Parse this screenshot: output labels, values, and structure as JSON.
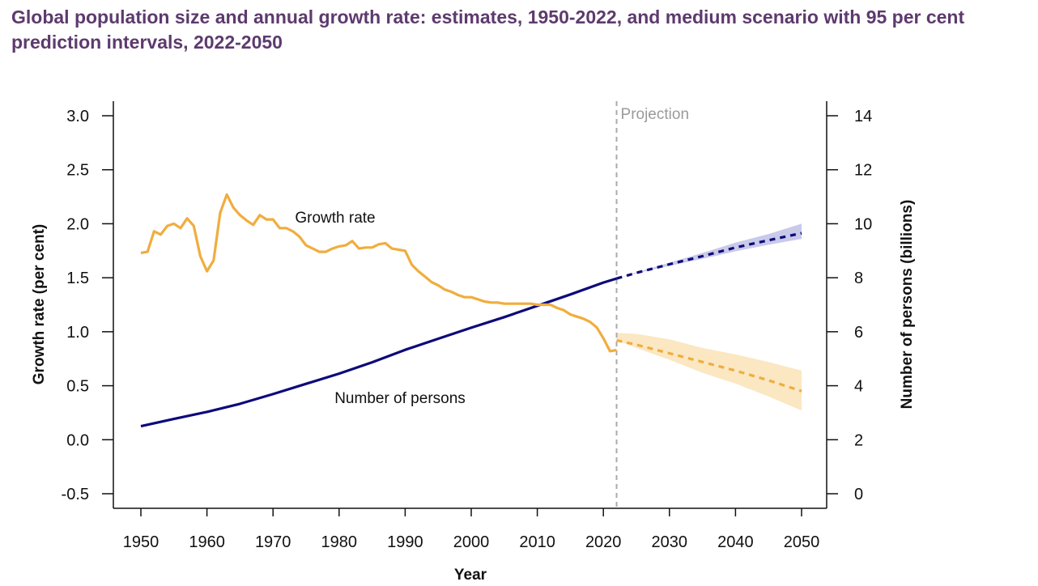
{
  "title": "Global population size and annual growth rate: estimates, 1950-2022, and medium scenario with 95 per cent prediction intervals, 2022-2050",
  "chart_data": {
    "type": "line",
    "title": "Global population size and annual growth rate: estimates, 1950-2022, and medium scenario with 95 per cent prediction intervals, 2022-2050",
    "xlabel": "Year",
    "ylabel_left": "Growth rate (per cent)",
    "ylabel_right": "Number of persons (billions)",
    "xlim": [
      1950,
      2050
    ],
    "ylim_left": [
      -0.5,
      3.0
    ],
    "ylim_right": [
      0,
      14
    ],
    "x_ticks": [
      1950,
      1960,
      1970,
      1980,
      1990,
      2000,
      2010,
      2020,
      2030,
      2040,
      2050
    ],
    "y_left_ticks": [
      -0.5,
      0.0,
      0.5,
      1.0,
      1.5,
      2.0,
      2.5,
      3.0
    ],
    "y_left_tick_labels": [
      "-0.5",
      "0.0",
      "0.5",
      "1.0",
      "1.5",
      "2.0",
      "2.5",
      "3.0"
    ],
    "y_right_ticks": [
      0,
      2,
      4,
      6,
      8,
      10,
      12,
      14
    ],
    "projection_start": 2022,
    "projection_label": "Projection",
    "annotations": {
      "growth": "Growth rate",
      "persons": "Number of persons"
    },
    "colors": {
      "growth": "#f0ad3e",
      "growth_band": "#fbe7c2",
      "persons": "#0d0a7a",
      "persons_band": "#c9c9ea",
      "projection_line": "#aaaaaa",
      "title": "#5d3a6e"
    },
    "series": [
      {
        "name": "Growth rate",
        "axis": "left",
        "x": [
          1950,
          1951,
          1952,
          1953,
          1954,
          1955,
          1956,
          1957,
          1958,
          1959,
          1960,
          1961,
          1962,
          1963,
          1964,
          1965,
          1966,
          1967,
          1968,
          1969,
          1970,
          1971,
          1972,
          1973,
          1974,
          1975,
          1976,
          1977,
          1978,
          1979,
          1980,
          1981,
          1982,
          1983,
          1984,
          1985,
          1986,
          1987,
          1988,
          1989,
          1990,
          1991,
          1992,
          1993,
          1994,
          1995,
          1996,
          1997,
          1998,
          1999,
          2000,
          2001,
          2002,
          2003,
          2004,
          2005,
          2006,
          2007,
          2008,
          2009,
          2010,
          2011,
          2012,
          2013,
          2014,
          2015,
          2016,
          2017,
          2018,
          2019,
          2020,
          2021,
          2022
        ],
        "values": [
          1.73,
          1.74,
          1.93,
          1.9,
          1.98,
          2.0,
          1.96,
          2.05,
          1.98,
          1.7,
          1.56,
          1.66,
          2.1,
          2.27,
          2.15,
          2.08,
          2.03,
          1.99,
          2.08,
          2.04,
          2.04,
          1.96,
          1.96,
          1.93,
          1.88,
          1.8,
          1.77,
          1.74,
          1.74,
          1.77,
          1.79,
          1.8,
          1.84,
          1.77,
          1.78,
          1.78,
          1.81,
          1.82,
          1.77,
          1.76,
          1.75,
          1.62,
          1.56,
          1.51,
          1.46,
          1.43,
          1.39,
          1.37,
          1.34,
          1.32,
          1.32,
          1.3,
          1.28,
          1.27,
          1.27,
          1.26,
          1.26,
          1.26,
          1.26,
          1.26,
          1.25,
          1.25,
          1.25,
          1.22,
          1.2,
          1.16,
          1.14,
          1.12,
          1.09,
          1.04,
          0.94,
          0.82,
          0.83
        ]
      },
      {
        "name": "Growth rate (projection, medium)",
        "axis": "left",
        "x": [
          2022,
          2025,
          2030,
          2035,
          2040,
          2045,
          2050
        ],
        "values": [
          0.92,
          0.88,
          0.8,
          0.72,
          0.64,
          0.55,
          0.45
        ],
        "lower": [
          0.92,
          0.85,
          0.74,
          0.62,
          0.52,
          0.4,
          0.27
        ],
        "upper": [
          0.99,
          0.98,
          0.93,
          0.85,
          0.79,
          0.72,
          0.64
        ]
      },
      {
        "name": "Number of persons (billions)",
        "axis": "right",
        "x": [
          1950,
          1955,
          1960,
          1965,
          1970,
          1975,
          1980,
          1985,
          1990,
          1995,
          2000,
          2005,
          2010,
          2015,
          2020,
          2022
        ],
        "values": [
          2.5,
          2.77,
          3.03,
          3.33,
          3.69,
          4.07,
          4.45,
          4.87,
          5.33,
          5.74,
          6.15,
          6.54,
          6.96,
          7.38,
          7.82,
          7.97
        ]
      },
      {
        "name": "Number of persons (projection, medium)",
        "axis": "right",
        "x": [
          2022,
          2025,
          2030,
          2035,
          2040,
          2045,
          2050
        ],
        "values": [
          7.97,
          8.18,
          8.5,
          8.8,
          9.12,
          9.39,
          9.65
        ],
        "lower": [
          7.97,
          8.16,
          8.44,
          8.7,
          8.98,
          9.22,
          9.44
        ],
        "upper": [
          7.97,
          8.2,
          8.56,
          8.92,
          9.3,
          9.62,
          10.0
        ]
      }
    ]
  }
}
